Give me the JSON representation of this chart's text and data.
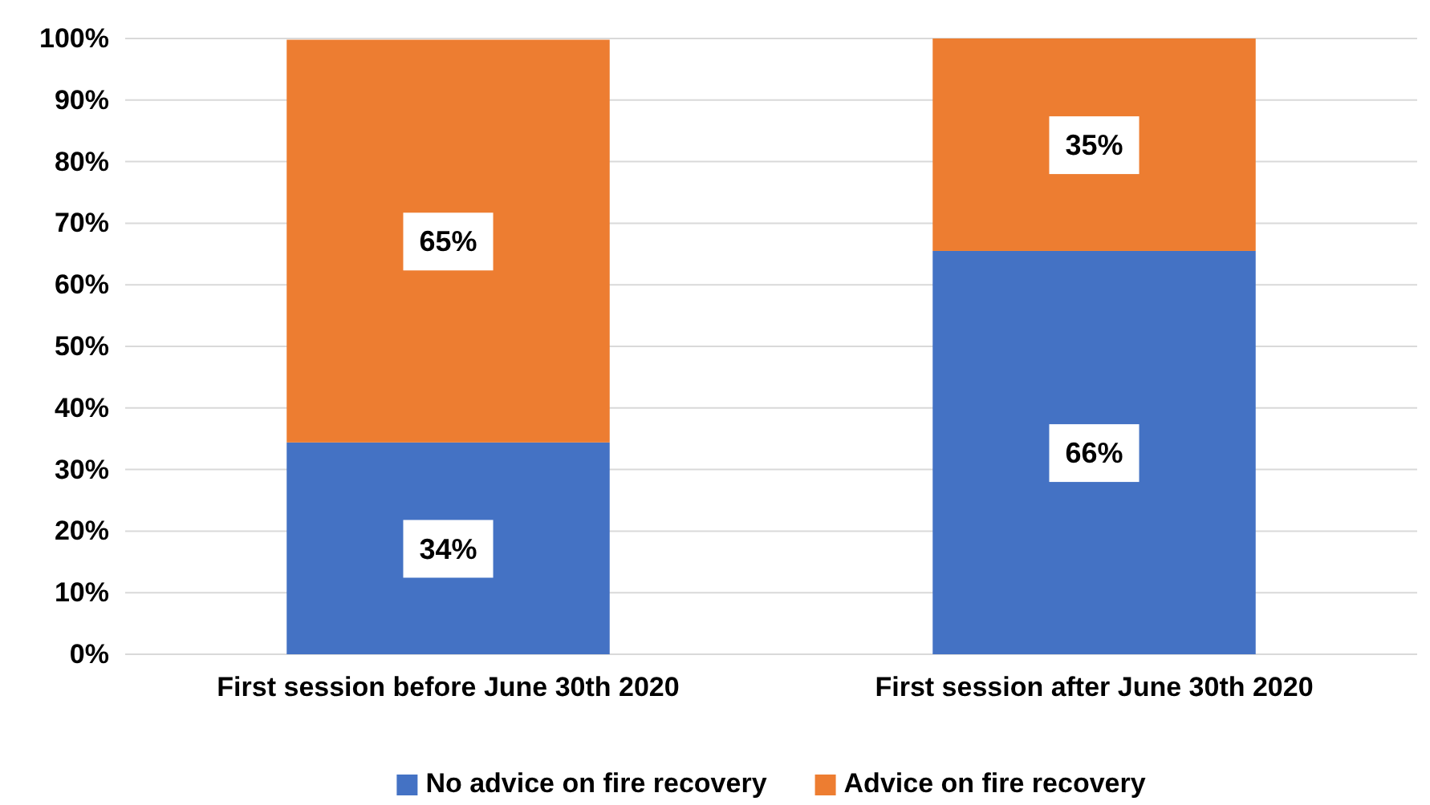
{
  "chart_data": {
    "type": "bar",
    "stacked": true,
    "categories": [
      "First session before June 30th 2020",
      "First session after June 30th 2020"
    ],
    "series": [
      {
        "name": "No advice on fire recovery",
        "color": "#4472c4",
        "values": [
          34.4,
          65.5
        ],
        "value_labels": [
          "34%",
          "66%"
        ]
      },
      {
        "name": "Advice on fire recovery",
        "color": "#ed7d31",
        "values": [
          65.4,
          34.5
        ],
        "value_labels": [
          "65%",
          "35%"
        ]
      }
    ],
    "ylim": [
      0,
      100
    ],
    "yticks": [
      {
        "value": 0,
        "label": "0%"
      },
      {
        "value": 10,
        "label": "10%"
      },
      {
        "value": 20,
        "label": "20%"
      },
      {
        "value": 30,
        "label": "30%"
      },
      {
        "value": 40,
        "label": "40%"
      },
      {
        "value": 50,
        "label": "50%"
      },
      {
        "value": 60,
        "label": "60%"
      },
      {
        "value": 70,
        "label": "70%"
      },
      {
        "value": 80,
        "label": "80%"
      },
      {
        "value": 90,
        "label": "90%"
      },
      {
        "value": 100,
        "label": "100%"
      }
    ],
    "grid": "y",
    "legend": "bottom"
  }
}
